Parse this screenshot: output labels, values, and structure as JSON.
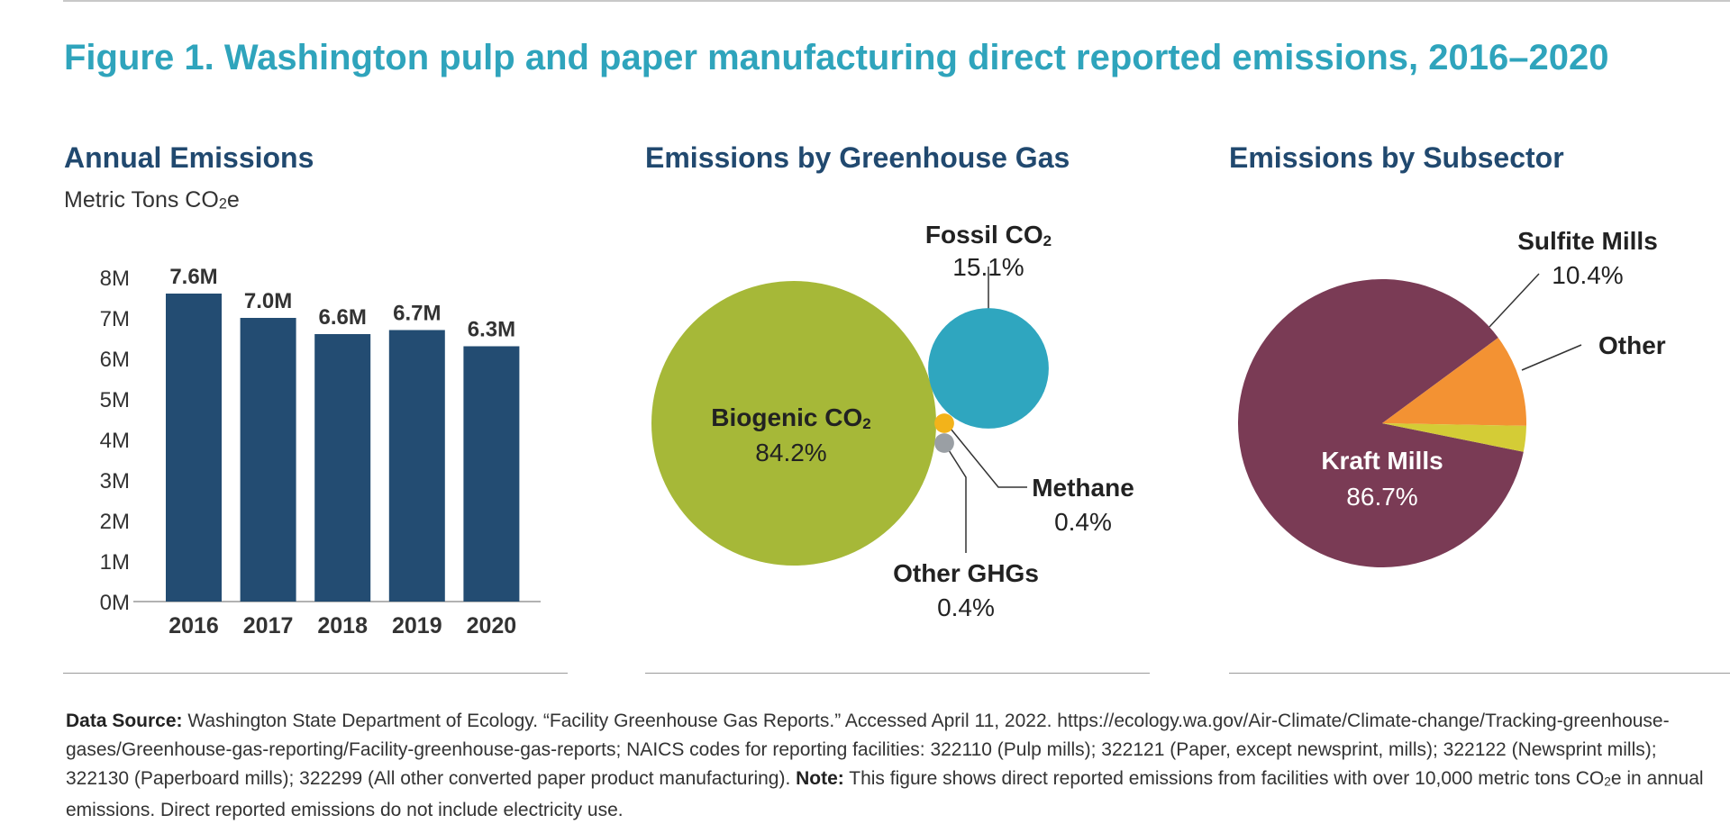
{
  "figure_title": "Figure 1. Washington pulp and paper manufacturing direct reported emissions, 2016–2020",
  "panels": {
    "annual": {
      "title": "Annual Emissions",
      "subtitle_prefix": "Metric Tons CO",
      "subtitle_sub": "2",
      "subtitle_suffix": "e"
    },
    "ghg": {
      "title": "Emissions by Greenhouse Gas"
    },
    "subsector": {
      "title": "Emissions by Subsector"
    }
  },
  "colors": {
    "bar": "#234c72",
    "biogenic": "#a6b838",
    "fossil": "#2fa6bf",
    "methane": "#f3b31a",
    "other_ghg": "#9a9fa4",
    "kraft": "#7a3b55",
    "sulfite": "#f39233",
    "other_sub": "#d4cc36"
  },
  "chart_data": [
    {
      "type": "bar",
      "title": "Annual Emissions",
      "ylabel": "Metric Tons CO2e",
      "categories": [
        "2016",
        "2017",
        "2018",
        "2019",
        "2020"
      ],
      "values": [
        7.6,
        7.0,
        6.6,
        6.7,
        6.3
      ],
      "value_labels": [
        "7.6M",
        "7.0M",
        "6.6M",
        "6.7M",
        "6.3M"
      ],
      "yticks": [
        "0M",
        "1M",
        "2M",
        "3M",
        "4M",
        "5M",
        "6M",
        "7M",
        "8M"
      ],
      "ylim": [
        0,
        8
      ],
      "unit": "M"
    },
    {
      "type": "bubble",
      "title": "Emissions by Greenhouse Gas",
      "items": [
        {
          "name": "Biogenic CO2",
          "label_main": "Biogenic CO",
          "label_sub": "2",
          "value": 84.2,
          "value_label": "84.2%"
        },
        {
          "name": "Fossil CO2",
          "label_main": "Fossil CO",
          "label_sub": "2",
          "value": 15.1,
          "value_label": "15.1%"
        },
        {
          "name": "Methane",
          "label_main": "Methane",
          "label_sub": "",
          "value": 0.4,
          "value_label": "0.4%"
        },
        {
          "name": "Other GHGs",
          "label_main": "Other GHGs",
          "label_sub": "",
          "value": 0.4,
          "value_label": "0.4%"
        }
      ]
    },
    {
      "type": "pie",
      "title": "Emissions by Subsector",
      "slices": [
        {
          "name": "Kraft Mills",
          "value": 86.7,
          "value_label": "86.7%"
        },
        {
          "name": "Sulfite Mills",
          "value": 10.4,
          "value_label": "10.4%"
        },
        {
          "name": "Other",
          "value": 2.9,
          "value_label": ""
        }
      ]
    }
  ],
  "footer": {
    "source_label": "Data Source:",
    "source_text": " Washington State Department of Ecology. “Facility Greenhouse Gas Reports.” Accessed April 11, 2022. https://ecology.wa.gov/Air-Climate/Climate-change/Tracking-greenhouse-gases/Greenhouse-gas-reporting/Facility-greenhouse-gas-reports; NAICS codes for reporting facilities: 322110 (Pulp mills); 322121 (Paper, except newsprint, mills); 322122 (Newsprint mills); 322130 (Paperboard mills); 322299 (All other converted paper product manufacturing).",
    "note_label": " Note:",
    "note_text_a": " This figure shows direct reported emissions from facilities with over 10,000 metric tons CO",
    "note_sub": "2",
    "note_text_b": "e in annual emissions. Direct reported emissions do not include electricity use."
  }
}
